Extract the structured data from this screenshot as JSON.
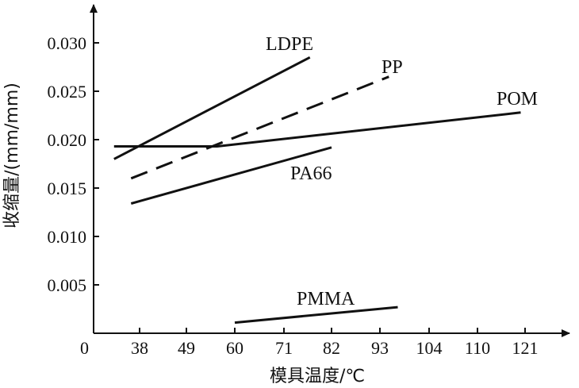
{
  "chart_data": {
    "type": "line",
    "title": "",
    "xlabel": "模具温度/℃",
    "ylabel": "收缩量/(mm/mm)",
    "origin_label": "0",
    "x_ticks": [
      "38",
      "49",
      "60",
      "71",
      "82",
      "93",
      "104",
      "110",
      "121"
    ],
    "y_ticks": [
      "0.005",
      "0.010",
      "0.015",
      "0.020",
      "0.025",
      "0.030"
    ],
    "ylim": [
      0,
      0.032
    ],
    "grid": false,
    "legend": "none",
    "series": [
      {
        "name": "LDPE",
        "dashed": false,
        "points": [
          {
            "x": 32,
            "y": 0.018
          },
          {
            "x": 77,
            "y": 0.0285
          }
        ]
      },
      {
        "name": "PP",
        "dashed": false,
        "dash_style": true,
        "points": [
          {
            "x": 36,
            "y": 0.016
          },
          {
            "x": 95,
            "y": 0.0265
          }
        ]
      },
      {
        "name": "POM",
        "dashed": false,
        "points": [
          {
            "x": 32,
            "y": 0.0193
          },
          {
            "x": 56,
            "y": 0.0193
          },
          {
            "x": 120,
            "y": 0.0228
          }
        ]
      },
      {
        "name": "PA66",
        "dashed": false,
        "points": [
          {
            "x": 36,
            "y": 0.0134
          },
          {
            "x": 82,
            "y": 0.0192
          }
        ]
      },
      {
        "name": "PMMA",
        "dashed": false,
        "points": [
          {
            "x": 60,
            "y": 0.0011
          },
          {
            "x": 97,
            "y": 0.0027
          }
        ]
      }
    ]
  }
}
